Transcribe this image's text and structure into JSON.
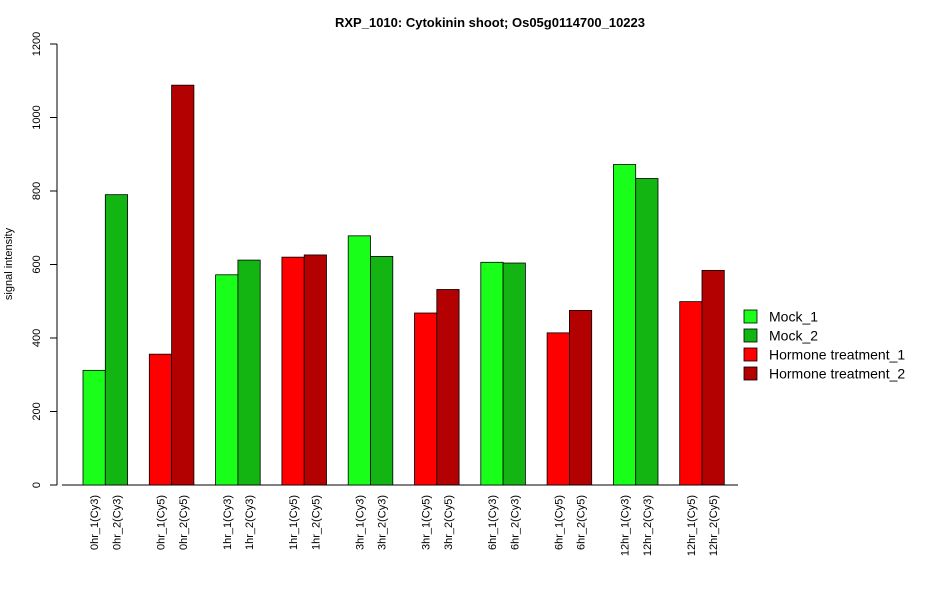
{
  "chart_data": {
    "type": "bar",
    "title": "RXP_1010: Cytokinin shoot; Os05g0114700_10223",
    "xlabel": "",
    "ylabel": "signal intensity",
    "ylim": [
      0,
      1200
    ],
    "yticks": [
      0,
      200,
      400,
      600,
      800,
      1000,
      1200
    ],
    "grid": false,
    "legend_position": "right",
    "series": [
      {
        "name": "Mock_1",
        "color": "#19FF19"
      },
      {
        "name": "Mock_2",
        "color": "#12B512"
      },
      {
        "name": "Hormone treatment_1",
        "color": "#FF0000"
      },
      {
        "name": "Hormone treatment_2",
        "color": "#B30000"
      }
    ],
    "bars": [
      {
        "label": "0hr_1(Cy3)",
        "value": 312,
        "series": 0
      },
      {
        "label": "0hr_2(Cy3)",
        "value": 790,
        "series": 1
      },
      {
        "label": "0hr_1(Cy5)",
        "value": 356,
        "series": 2
      },
      {
        "label": "0hr_2(Cy5)",
        "value": 1088,
        "series": 3
      },
      {
        "label": "1hr_1(Cy3)",
        "value": 572,
        "series": 0
      },
      {
        "label": "1hr_2(Cy3)",
        "value": 612,
        "series": 1
      },
      {
        "label": "1hr_1(Cy5)",
        "value": 620,
        "series": 2
      },
      {
        "label": "1hr_2(Cy5)",
        "value": 626,
        "series": 3
      },
      {
        "label": "3hr_1(Cy3)",
        "value": 678,
        "series": 0
      },
      {
        "label": "3hr_2(Cy3)",
        "value": 622,
        "series": 1
      },
      {
        "label": "3hr_1(Cy5)",
        "value": 468,
        "series": 2
      },
      {
        "label": "3hr_2(Cy5)",
        "value": 532,
        "series": 3
      },
      {
        "label": "6hr_1(Cy3)",
        "value": 606,
        "series": 0
      },
      {
        "label": "6hr_2(Cy3)",
        "value": 604,
        "series": 1
      },
      {
        "label": "6hr_1(Cy5)",
        "value": 414,
        "series": 2
      },
      {
        "label": "6hr_2(Cy5)",
        "value": 475,
        "series": 3
      },
      {
        "label": "12hr_1(Cy3)",
        "value": 872,
        "series": 0
      },
      {
        "label": "12hr_2(Cy3)",
        "value": 834,
        "series": 1
      },
      {
        "label": "12hr_1(Cy5)",
        "value": 499,
        "series": 2
      },
      {
        "label": "12hr_2(Cy5)",
        "value": 584,
        "series": 3
      }
    ]
  }
}
